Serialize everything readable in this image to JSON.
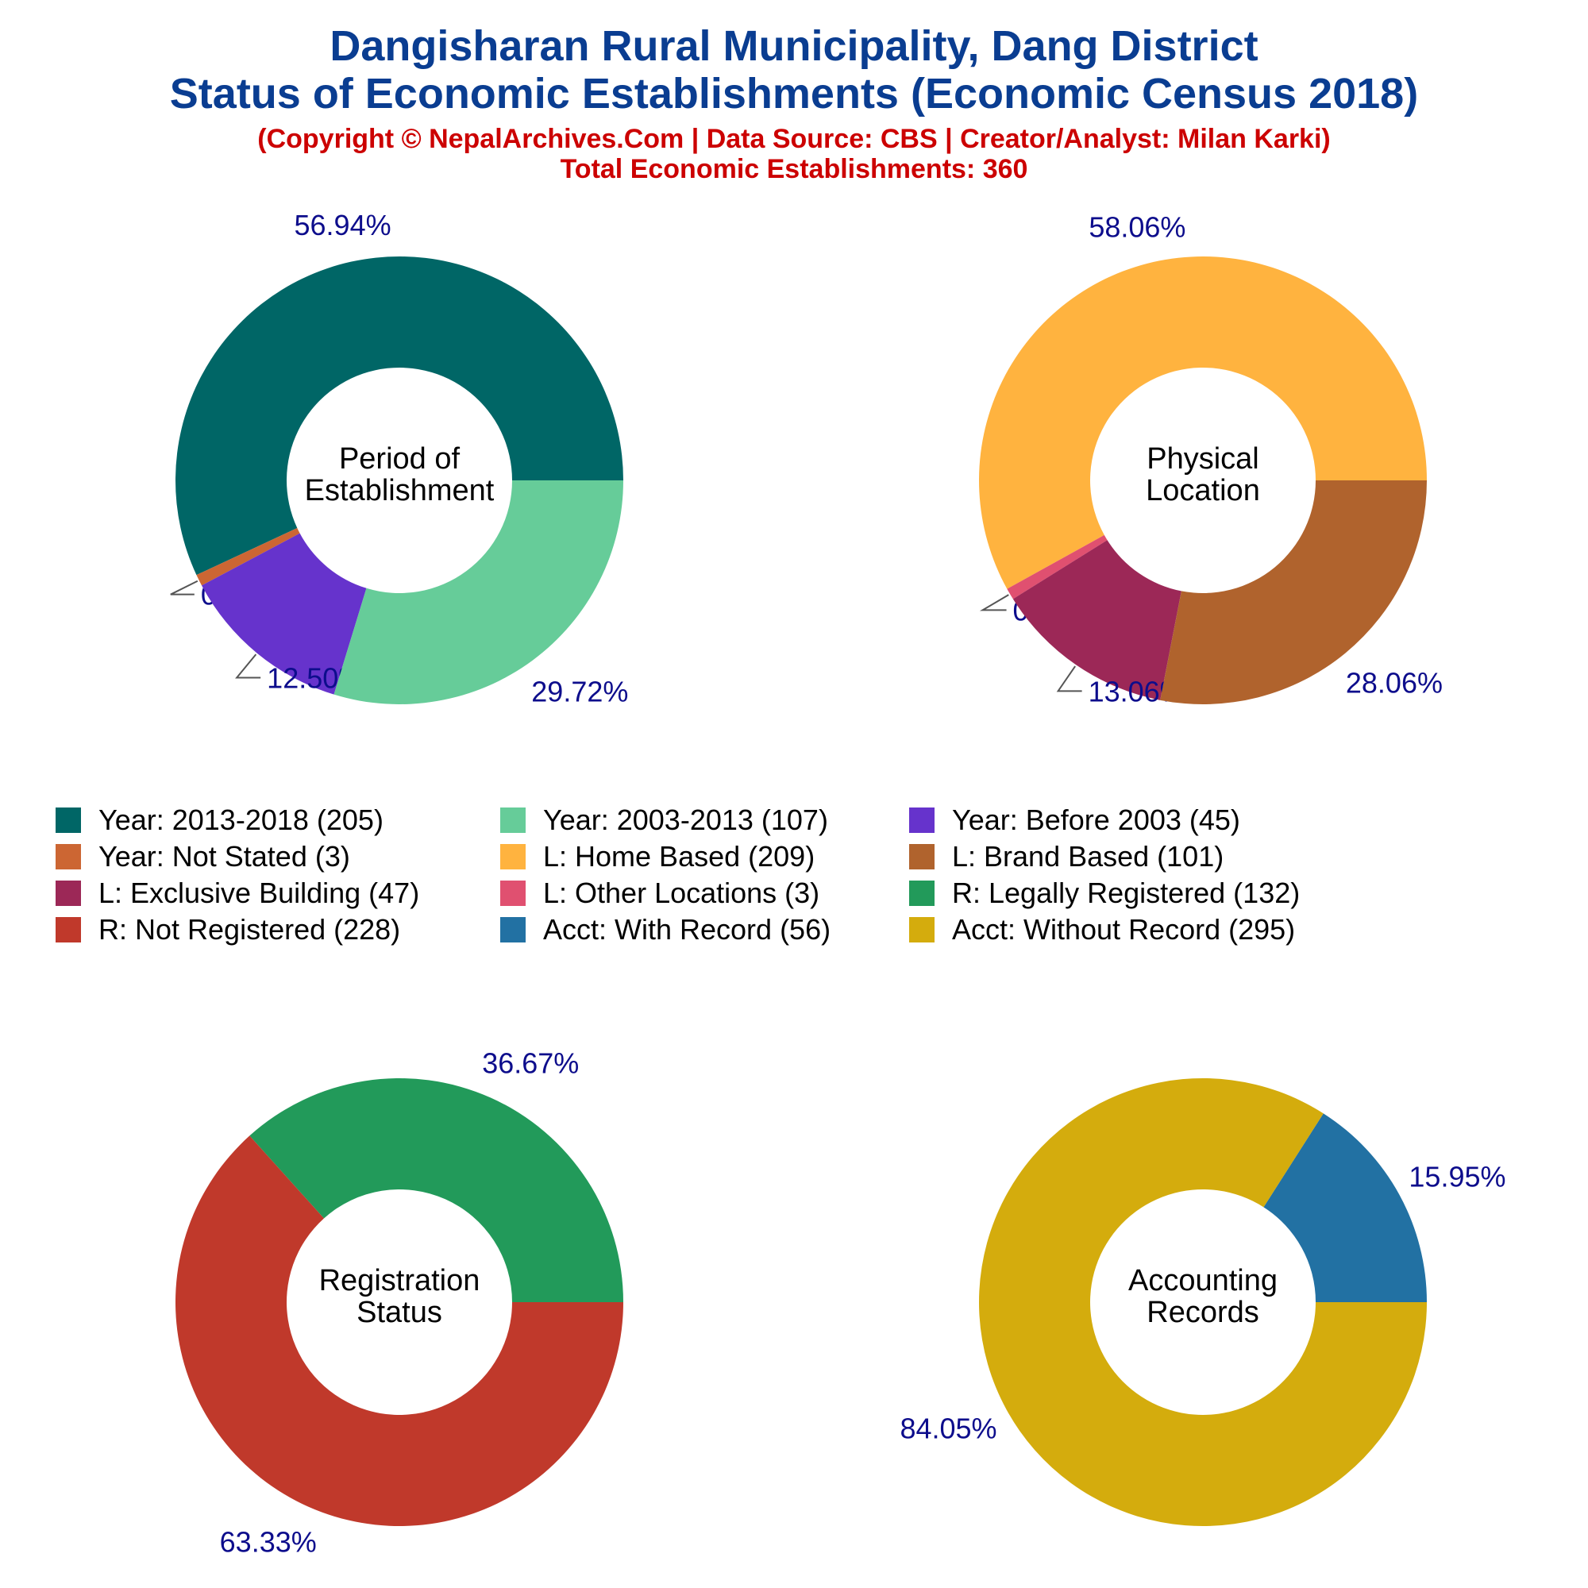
{
  "header": {
    "title_line1": "Dangisharan Rural Municipality, Dang District",
    "title_line2": "Status of Economic Establishments (Economic Census 2018)",
    "subtitle_line1": "(Copyright © NepalArchives.Com | Data Source: CBS | Creator/Analyst: Milan Karki)",
    "subtitle_line2": "Total Economic Establishments: 360"
  },
  "legend": [
    {
      "label": "Year: 2013-2018 (205)",
      "color": "#006666"
    },
    {
      "label": "Year: 2003-2013 (107)",
      "color": "#66cc99"
    },
    {
      "label": "Year: Before 2003 (45)",
      "color": "#6633cc"
    },
    {
      "label": "Year: Not Stated (3)",
      "color": "#cc6633"
    },
    {
      "label": "L: Home Based (209)",
      "color": "#ffb33f"
    },
    {
      "label": "L: Brand Based (101)",
      "color": "#b0632d"
    },
    {
      "label": "L: Exclusive Building (47)",
      "color": "#9c2857"
    },
    {
      "label": "L: Other Locations (3)",
      "color": "#e05070"
    },
    {
      "label": "R: Legally Registered (132)",
      "color": "#229a5a"
    },
    {
      "label": "R: Not Registered (228)",
      "color": "#c0392b"
    },
    {
      "label": "Acct: With Record (56)",
      "color": "#2271a3"
    },
    {
      "label": "Acct: Without Record (295)",
      "color": "#d4ac0d"
    }
  ],
  "chart_data": [
    {
      "type": "pie",
      "center_label": [
        "Period of",
        "Establishment"
      ],
      "slices": [
        {
          "name": "Year: 2013-2018",
          "value": 205,
          "label": "56.94%",
          "color": "#006666"
        },
        {
          "name": "Year: Not Stated",
          "value": 3,
          "label": "0.83%",
          "color": "#cc6633"
        },
        {
          "name": "Year: Before 2003",
          "value": 45,
          "label": "12.50%",
          "color": "#6633cc"
        },
        {
          "name": "Year: 2003-2013",
          "value": 107,
          "label": "29.72%",
          "color": "#66cc99"
        }
      ]
    },
    {
      "type": "pie",
      "center_label": [
        "Physical",
        "Location"
      ],
      "slices": [
        {
          "name": "L: Home Based",
          "value": 209,
          "label": "58.06%",
          "color": "#ffb33f"
        },
        {
          "name": "L: Other Locations",
          "value": 3,
          "label": "0.83%",
          "color": "#e05070"
        },
        {
          "name": "L: Exclusive Building",
          "value": 47,
          "label": "13.06%",
          "color": "#9c2857"
        },
        {
          "name": "L: Brand Based",
          "value": 101,
          "label": "28.06%",
          "color": "#b0632d"
        }
      ]
    },
    {
      "type": "pie",
      "center_label": [
        "Registration",
        "Status"
      ],
      "slices": [
        {
          "name": "R: Legally Registered",
          "value": 132,
          "label": "36.67%",
          "color": "#229a5a"
        },
        {
          "name": "R: Not Registered",
          "value": 228,
          "label": "63.33%",
          "color": "#c0392b"
        }
      ]
    },
    {
      "type": "pie",
      "center_label": [
        "Accounting",
        "Records"
      ],
      "slices": [
        {
          "name": "Acct: With Record",
          "value": 56,
          "label": "15.95%",
          "color": "#2271a3"
        },
        {
          "name": "Acct: Without Record",
          "value": 295,
          "label": "84.05%",
          "color": "#d4ac0d"
        }
      ]
    }
  ]
}
